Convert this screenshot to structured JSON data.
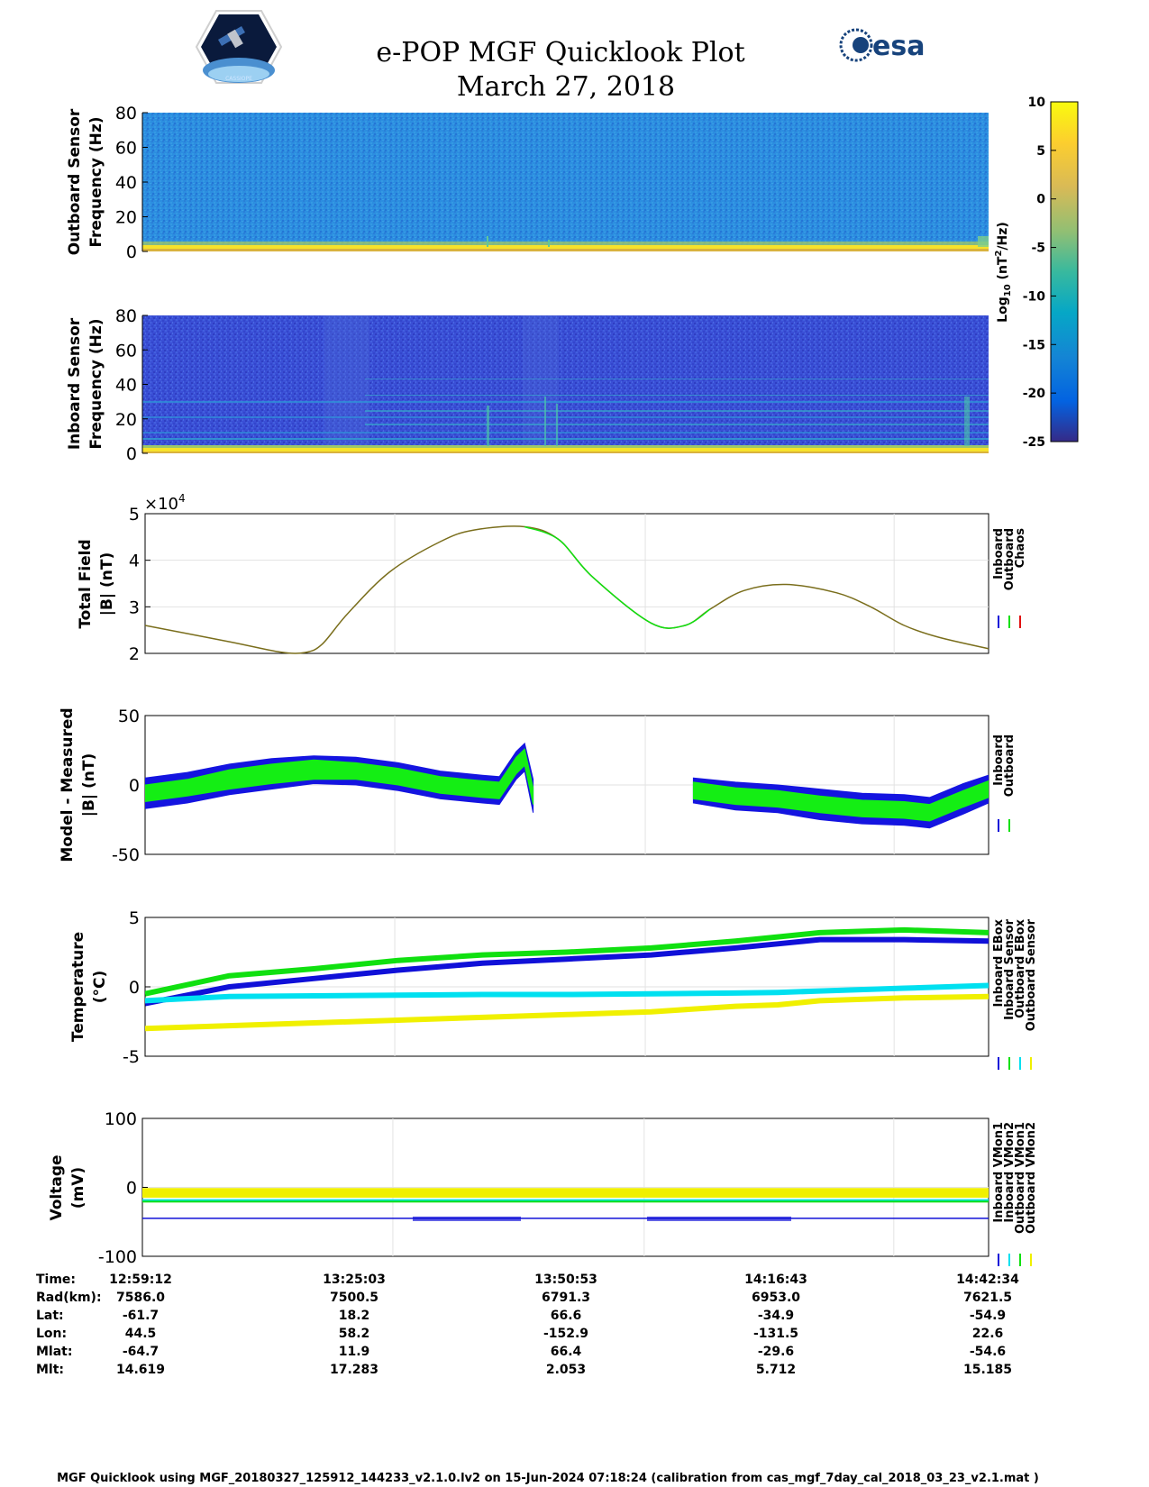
{
  "title": "e-POP MGF Quicklook Plot",
  "date": "March 27, 2018",
  "logos": {
    "left": "CASSIOPE mission logo",
    "right": "esa"
  },
  "colorbar": {
    "label": "Log10 (nT2/Hz)",
    "ticks": [
      "10",
      "5",
      "0",
      "-5",
      "-10",
      "-15",
      "-20",
      "-25"
    ],
    "range": [
      -25,
      10
    ]
  },
  "chart_data": [
    {
      "type": "heatmap",
      "ylabel": [
        "Outboard Sensor",
        "Frequency (Hz)"
      ],
      "yticks": [
        "80",
        "60",
        "40",
        "20",
        "0"
      ],
      "ylim": [
        0,
        80
      ]
    },
    {
      "type": "heatmap",
      "ylabel": [
        "Inboard Sensor",
        "Frequency (Hz)"
      ],
      "yticks": [
        "80",
        "60",
        "40",
        "20",
        "0"
      ],
      "ylim": [
        0,
        80
      ]
    },
    {
      "type": "line",
      "ylabel": [
        "Total Field",
        "|B| (nT)"
      ],
      "yticks": [
        "5",
        "4",
        "3",
        "2"
      ],
      "ylim": [
        2,
        5
      ],
      "multiplier": "×10",
      "multiplier_exp": "4",
      "legend": [
        "Inboard",
        "Outboard",
        "Chaos"
      ],
      "legend_colors": [
        "#1010d8",
        "#10e010",
        "#e01010"
      ],
      "x": [
        0.0,
        0.1,
        0.16,
        0.19,
        0.21,
        0.24,
        0.29,
        0.35,
        0.39,
        0.45,
        0.49,
        0.53,
        0.6,
        0.64,
        0.67,
        0.71,
        0.76,
        0.82,
        0.86,
        0.9,
        0.94,
        1.0
      ],
      "values": [
        2.6,
        2.25,
        2.03,
        2.02,
        2.2,
        2.85,
        3.75,
        4.4,
        4.65,
        4.72,
        4.45,
        3.65,
        2.65,
        2.6,
        2.95,
        3.35,
        3.48,
        3.3,
        3.0,
        2.6,
        2.35,
        2.1
      ],
      "series": [
        {
          "name": "Inboard",
          "color": "#1010d8"
        },
        {
          "name": "Outboard",
          "color": "#10e010"
        },
        {
          "name": "Chaos",
          "color": "#e01010"
        }
      ]
    },
    {
      "type": "line",
      "ylabel": [
        "Model - Measured",
        "|B| (nT)"
      ],
      "yticks": [
        "50",
        "0",
        "-50"
      ],
      "ylim": [
        -50,
        50
      ],
      "legend": [
        "Inboard",
        "Outboard"
      ],
      "legend_colors": [
        "#1010d8",
        "#10e010"
      ],
      "segments": [
        {
          "x": [
            0.0,
            0.05,
            0.1,
            0.15,
            0.2,
            0.25,
            0.3,
            0.35,
            0.4,
            0.42,
            0.44,
            0.45,
            0.46
          ],
          "center": [
            -6,
            -2,
            4,
            8,
            11,
            10,
            6,
            0,
            -3,
            -4,
            14,
            20,
            -8
          ],
          "green_half": [
            6,
            6,
            7,
            7,
            7,
            6,
            6,
            6,
            6,
            6,
            6,
            6,
            6
          ],
          "blue_half": [
            11,
            11,
            11,
            11,
            10,
            10,
            10,
            10,
            10,
            10,
            10,
            10,
            12
          ]
        },
        {
          "x": [
            0.65,
            0.7,
            0.75,
            0.8,
            0.85,
            0.9,
            0.93,
            0.97,
            1.0
          ],
          "center": [
            -4,
            -8,
            -10,
            -14,
            -17,
            -18,
            -20,
            -10,
            -3
          ],
          "green_half": [
            6,
            6,
            6,
            6,
            6,
            6,
            6,
            6,
            6
          ],
          "blue_half": [
            9,
            10,
            10,
            11,
            11,
            11,
            11,
            11,
            10
          ]
        }
      ]
    },
    {
      "type": "line",
      "ylabel": [
        "Temperature",
        "(°C)"
      ],
      "yticks": [
        "5",
        "0",
        "-5"
      ],
      "ylim": [
        -5,
        5
      ],
      "legend": [
        "Inboard EBox",
        "Inboard Sensor",
        "Outboard EBox",
        "Outboard Sensor"
      ],
      "legend_colors": [
        "#1010d8",
        "#10e010",
        "#00e0f0",
        "#f0f000"
      ],
      "x": [
        0.0,
        0.1,
        0.2,
        0.3,
        0.4,
        0.5,
        0.6,
        0.7,
        0.75,
        0.8,
        0.9,
        1.0
      ],
      "series": [
        {
          "name": "Inboard EBox",
          "color": "#1010d8",
          "values": [
            -1.2,
            0.0,
            0.6,
            1.2,
            1.7,
            2.0,
            2.3,
            2.8,
            3.1,
            3.4,
            3.4,
            3.3
          ]
        },
        {
          "name": "Inboard Sensor",
          "color": "#10e010",
          "values": [
            -0.5,
            0.8,
            1.3,
            1.9,
            2.3,
            2.5,
            2.8,
            3.3,
            3.6,
            3.9,
            4.1,
            3.9
          ]
        },
        {
          "name": "Outboard EBox",
          "color": "#00e0f0",
          "values": [
            -1.0,
            -0.7,
            -0.65,
            -0.6,
            -0.55,
            -0.55,
            -0.5,
            -0.45,
            -0.4,
            -0.3,
            -0.1,
            0.1
          ]
        },
        {
          "name": "Outboard Sensor",
          "color": "#f0f000",
          "values": [
            -3.0,
            -2.8,
            -2.6,
            -2.4,
            -2.2,
            -2.0,
            -1.8,
            -1.4,
            -1.3,
            -1.0,
            -0.8,
            -0.7
          ]
        }
      ]
    },
    {
      "type": "line",
      "ylabel": [
        "Voltage",
        "(mV)"
      ],
      "yticks": [
        "100",
        "0",
        "-100"
      ],
      "ylim": [
        -100,
        100
      ],
      "legend": [
        "Inboard VMon1",
        "Inboard VMon2",
        "Outboard VMon1",
        "Outboard VMon2"
      ],
      "legend_colors": [
        "#1010d8",
        "#00e0f0",
        "#10e010",
        "#f0f000"
      ],
      "series": [
        {
          "name": "Inboard VMon1",
          "color": "#1010d8",
          "level": -45
        },
        {
          "name": "Inboard VMon2",
          "color": "#00e0f0",
          "level": -18
        },
        {
          "name": "Outboard VMon1",
          "color": "#10e010",
          "level": -20
        },
        {
          "name": "Outboard VMon2",
          "color": "#f0f000",
          "level": -5
        }
      ]
    }
  ],
  "info": {
    "rows": [
      {
        "label": "Time:",
        "values": [
          "12:59:12",
          "13:25:03",
          "13:50:53",
          "14:16:43",
          "14:42:34"
        ]
      },
      {
        "label": "Rad(km):",
        "values": [
          "7586.0",
          "7500.5",
          "6791.3",
          "6953.0",
          "7621.5"
        ]
      },
      {
        "label": "Lat:",
        "values": [
          "-61.7",
          "18.2",
          "66.6",
          "-34.9",
          "-54.9"
        ]
      },
      {
        "label": "Lon:",
        "values": [
          "44.5",
          "58.2",
          "-152.9",
          "-131.5",
          "22.6"
        ]
      },
      {
        "label": "Mlat:",
        "values": [
          "-64.7",
          "11.9",
          "66.4",
          "-29.6",
          "-54.6"
        ]
      },
      {
        "label": "Mlt:",
        "values": [
          "14.619",
          "17.283",
          "2.053",
          "5.712",
          "15.185"
        ]
      }
    ]
  },
  "footer": "MGF Quicklook using MGF_20180327_125912_144233_v2.1.0.lv2 on 15-Jun-2024 07:18:24 (calibration from cas_mgf_7day_cal_2018_03_23_v2.1.mat )"
}
